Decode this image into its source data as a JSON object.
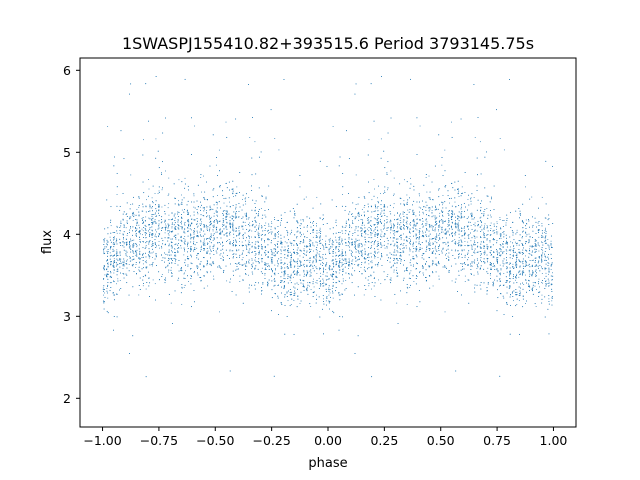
{
  "chart_data": {
    "type": "scatter",
    "title": "1SWASPJ155410.82+393515.6 Period 3793145.75s",
    "xlabel": "phase",
    "ylabel": "flux",
    "xlim": [
      -1.1,
      1.1
    ],
    "ylim": [
      1.65,
      6.15
    ],
    "xticks": [
      -1.0,
      -0.75,
      -0.5,
      -0.25,
      0.0,
      0.25,
      0.5,
      0.75,
      1.0
    ],
    "xtick_labels": [
      "−1.00",
      "−0.75",
      "−0.50",
      "−0.25",
      "0.00",
      "0.25",
      "0.50",
      "0.75",
      "1.00"
    ],
    "yticks": [
      2,
      3,
      4,
      5,
      6
    ],
    "ytick_labels": [
      "2",
      "3",
      "4",
      "5",
      "6"
    ],
    "grid": false,
    "marker_color": "#1f77b4",
    "phase_profile": {
      "phase": [
        0.0,
        0.05,
        0.1,
        0.15,
        0.2,
        0.25,
        0.3,
        0.35,
        0.4,
        0.45,
        0.5,
        0.55,
        0.6,
        0.65,
        0.7,
        0.75,
        0.8,
        0.85,
        0.9,
        0.95,
        1.0
      ],
      "mean_flux": [
        3.55,
        3.7,
        3.85,
        3.95,
        3.9,
        4.1,
        3.9,
        3.95,
        3.95,
        3.95,
        4.0,
        4.1,
        3.95,
        3.95,
        3.85,
        3.75,
        3.55,
        3.65,
        3.75,
        3.8,
        3.55
      ]
    },
    "flux_spread": 0.28,
    "n_points": 9000,
    "mirrored": true
  }
}
